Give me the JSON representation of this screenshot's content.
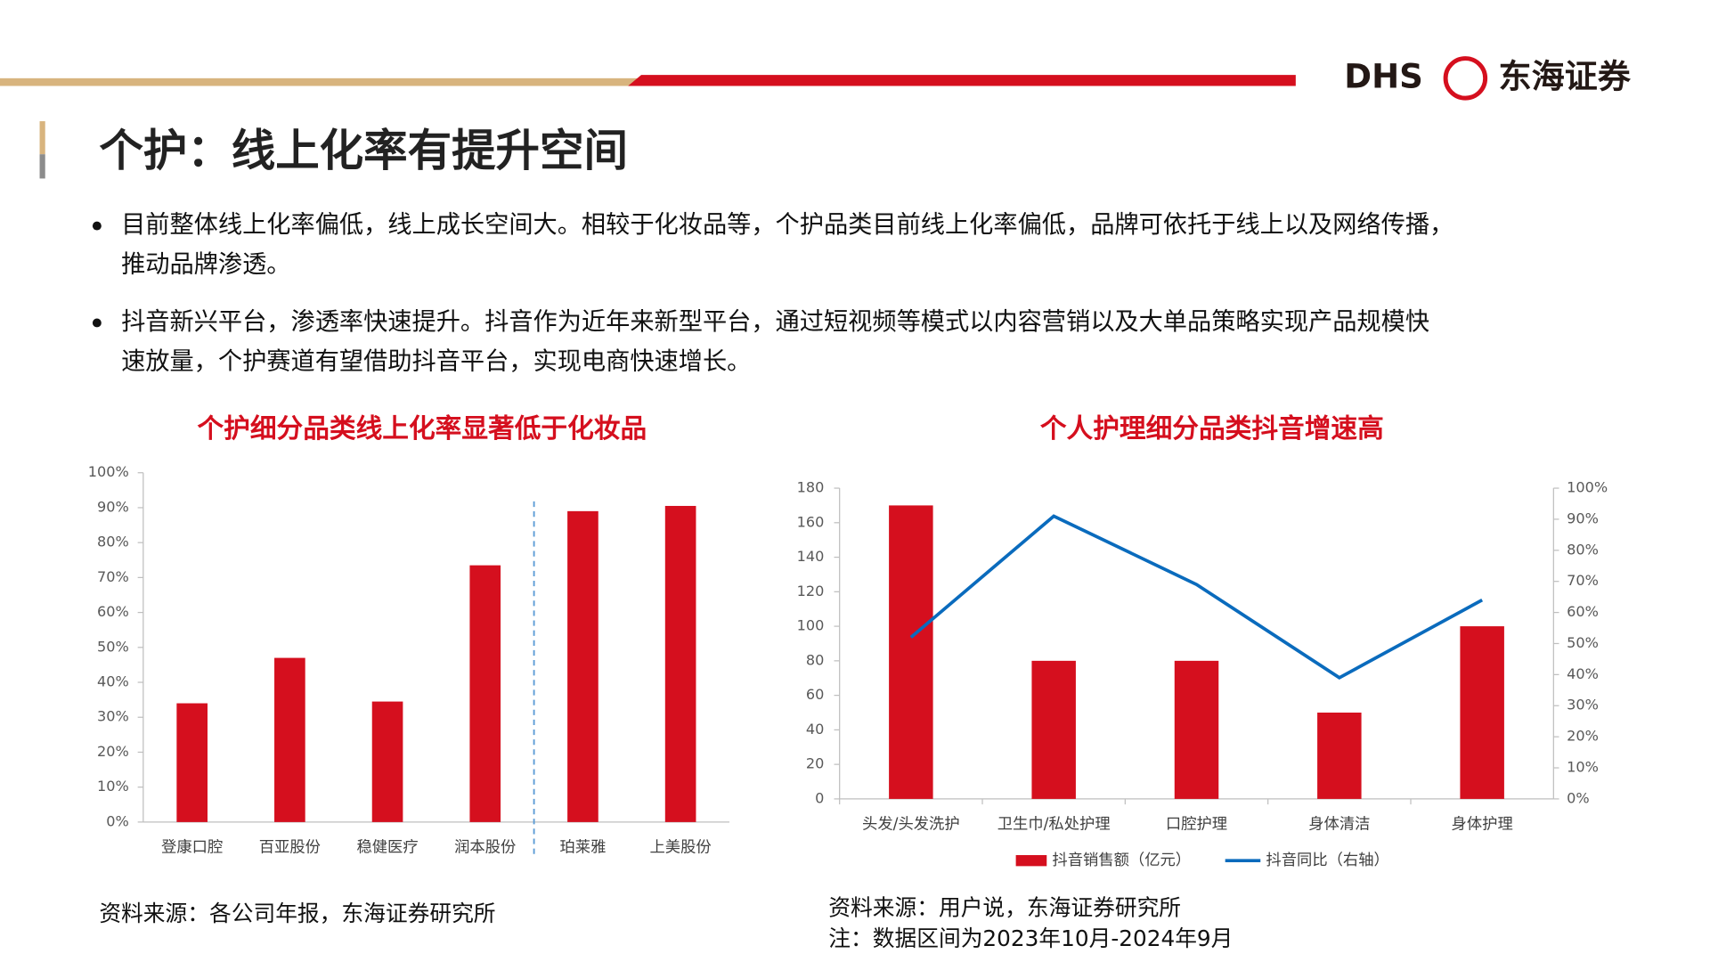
{
  "header": {
    "logo_en": "DHS",
    "logo_cn": "东海证券",
    "title": "个护：线上化率有提升空间"
  },
  "bullets": [
    [
      "目前整体线上化率偏低，线上成长空间大。相较于化妆品等，个护品类目前线上化率偏低，品牌可依托于线上以及网络传播，",
      "推动品牌渗透。"
    ],
    [
      "抖音新兴平台，渗透率快速提升。抖音作为近年来新型平台，通过短视频等模式以内容营销以及大单品策略实现产品规模快",
      "速放量，个护赛道有望借助抖音平台，实现电商快速增长。"
    ]
  ],
  "chart_data": [
    {
      "type": "bar",
      "title": "个护细分品类线上化率显著低于化妆品",
      "categories": [
        "登康口腔",
        "百亚股份",
        "稳健医疗",
        "润本股份",
        "珀莱雅",
        "上美股份"
      ],
      "values": [
        34,
        47,
        34.5,
        73.5,
        89,
        90.5
      ],
      "color": "#d50f1e",
      "ylim": [
        0,
        100
      ],
      "yticks": [
        {
          "value": 0,
          "label": "0%"
        },
        {
          "value": 10,
          "label": "10%"
        },
        {
          "value": 20,
          "label": "20%"
        },
        {
          "value": 30,
          "label": "30%"
        },
        {
          "value": 40,
          "label": "40%"
        },
        {
          "value": 50,
          "label": "50%"
        },
        {
          "value": 60,
          "label": "60%"
        },
        {
          "value": 70,
          "label": "70%"
        },
        {
          "value": 80,
          "label": "80%"
        },
        {
          "value": 90,
          "label": "90%"
        },
        {
          "value": 100,
          "label": "100%"
        }
      ],
      "grid": false,
      "source": "资料来源：各公司年报，东海证券研究所"
    },
    {
      "type": "bar-line",
      "title": "个人护理细分品类抖音增速高",
      "categories": [
        "头发/头发洗护",
        "卫生巾/私处护理",
        "口腔护理",
        "身体清洁",
        "身体护理"
      ],
      "series": [
        {
          "name": "抖音销售额（亿元）",
          "type": "bar",
          "color": "#d50f1e",
          "values": [
            170,
            80,
            80,
            50,
            100
          ]
        },
        {
          "name": "抖音同比（右轴）",
          "type": "line",
          "color": "#0a6bbd",
          "axis": "y2",
          "values": [
            52,
            91,
            69,
            39,
            64
          ]
        }
      ],
      "ylim": [
        0,
        180
      ],
      "yticks": [
        0,
        20,
        40,
        60,
        80,
        100,
        120,
        140,
        160,
        180
      ],
      "y2lim": [
        0,
        100
      ],
      "y2ticks": [
        {
          "value": 0,
          "label": "0%"
        },
        {
          "value": 10,
          "label": "10%"
        },
        {
          "value": 20,
          "label": "20%"
        },
        {
          "value": 30,
          "label": "30%"
        },
        {
          "value": 40,
          "label": "40%"
        },
        {
          "value": 50,
          "label": "50%"
        },
        {
          "value": 60,
          "label": "60%"
        },
        {
          "value": 70,
          "label": "70%"
        },
        {
          "value": 80,
          "label": "80%"
        },
        {
          "value": 90,
          "label": "90%"
        },
        {
          "value": 100,
          "label": "100%"
        }
      ],
      "grid": false,
      "legend": "bottom",
      "source": [
        "资料来源：用户说，东海证券研究所",
        "注：数据区间为2023年10月-2024年9月"
      ]
    }
  ]
}
